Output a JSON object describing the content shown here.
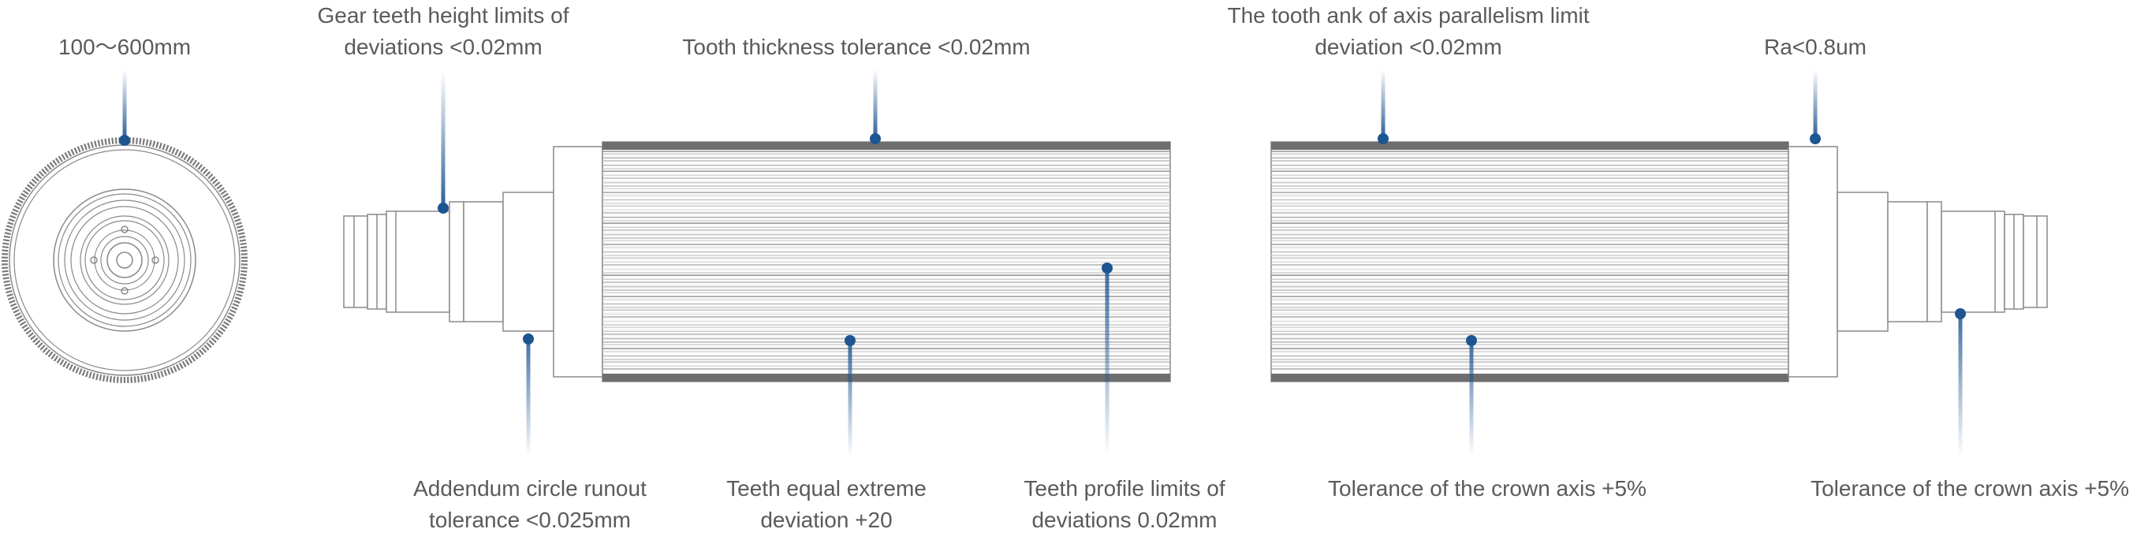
{
  "diagram": {
    "accent_color": "#1d5591",
    "line_color": "#9a9a9a",
    "dark_band_color": "#6e6e6e",
    "annotations": {
      "diameter": {
        "lines": [
          "100～600mm"
        ]
      },
      "gear_teeth_height": {
        "lines": [
          "Gear teeth height limits of",
          "deviations <0.02mm"
        ]
      },
      "tooth_thickness": {
        "lines": [
          "Tooth thickness tolerance <0.02mm"
        ]
      },
      "axis_parallelism": {
        "lines": [
          "The tooth ank of axis parallelism limit",
          "deviation <0.02mm"
        ]
      },
      "roughness": {
        "lines": [
          "Ra<0.8um"
        ]
      },
      "addendum_runout": {
        "lines": [
          "Addendum circle runout",
          "tolerance <0.025mm"
        ]
      },
      "teeth_equal_extreme": {
        "lines": [
          "Teeth equal extreme",
          "deviation +20"
        ]
      },
      "teeth_profile": {
        "lines": [
          "Teeth profile limits of",
          "deviations 0.02mm"
        ]
      },
      "crown_axis_1": {
        "lines": [
          "Tolerance of the crown axis +5%"
        ]
      },
      "crown_axis_2": {
        "lines": [
          "Tolerance of the crown axis +5%"
        ]
      }
    }
  }
}
